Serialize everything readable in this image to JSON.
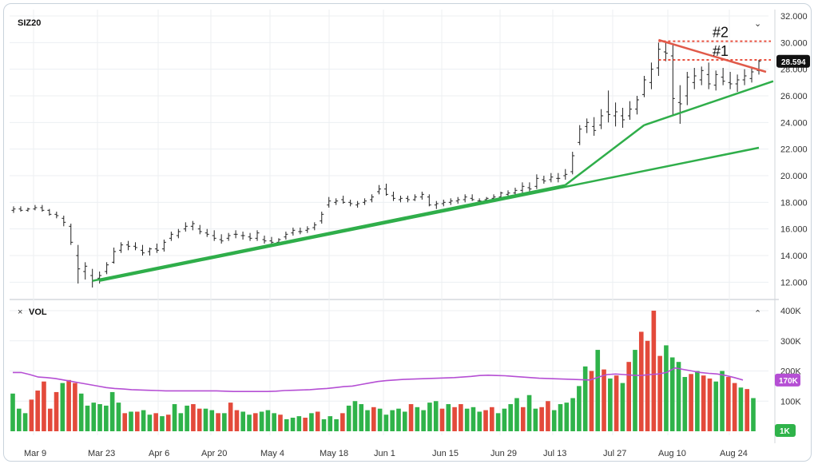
{
  "chart_data": [
    {
      "type": "bar",
      "symbol": "SIZ20",
      "ylim": [
        11,
        32
      ],
      "y_ticks": [
        "12.000",
        "14.000",
        "16.000",
        "18.000",
        "20.000",
        "22.000",
        "24.000",
        "26.000",
        "28.000",
        "30.000",
        "32.000"
      ],
      "y_tick_values": [
        12,
        14,
        16,
        18,
        20,
        22,
        24,
        26,
        28,
        30,
        32
      ],
      "x_ticks": [
        "Mar 9",
        "Mar 23",
        "Apr 6",
        "Apr 20",
        "May 4",
        "May 18",
        "Jun 1",
        "Jun 15",
        "Jun 29",
        "Jul 13",
        "Jul 27",
        "Aug 10",
        "Aug 24"
      ],
      "last_price": "28.594",
      "ohlc": [
        [
          17.4,
          17.7,
          17.2,
          17.5
        ],
        [
          17.5,
          17.7,
          17.3,
          17.4
        ],
        [
          17.4,
          17.6,
          17.3,
          17.5
        ],
        [
          17.5,
          17.8,
          17.4,
          17.6
        ],
        [
          17.6,
          17.8,
          17.3,
          17.4
        ],
        [
          17.4,
          17.5,
          17.0,
          17.1
        ],
        [
          17.1,
          17.3,
          16.8,
          17.0
        ],
        [
          16.8,
          17.0,
          16.2,
          16.5
        ],
        [
          16.2,
          16.4,
          14.8,
          15.0
        ],
        [
          14.0,
          14.8,
          11.9,
          13.0
        ],
        [
          12.8,
          13.5,
          12.2,
          13.2
        ],
        [
          12.5,
          13.0,
          11.6,
          12.1
        ],
        [
          12.3,
          12.8,
          11.9,
          12.5
        ],
        [
          12.8,
          13.5,
          12.6,
          13.3
        ],
        [
          13.5,
          14.6,
          13.4,
          14.3
        ],
        [
          14.4,
          15.0,
          14.2,
          14.8
        ],
        [
          14.8,
          15.1,
          14.4,
          14.7
        ],
        [
          14.7,
          15.0,
          14.4,
          14.6
        ],
        [
          14.4,
          14.8,
          14.0,
          14.2
        ],
        [
          14.3,
          14.6,
          14.0,
          14.5
        ],
        [
          14.5,
          14.9,
          14.2,
          14.4
        ],
        [
          14.5,
          15.2,
          14.3,
          15.0
        ],
        [
          15.3,
          15.8,
          15.1,
          15.6
        ],
        [
          15.5,
          16.0,
          15.3,
          15.8
        ],
        [
          16.0,
          16.5,
          15.8,
          16.2
        ],
        [
          16.2,
          16.6,
          15.9,
          16.4
        ],
        [
          16.0,
          16.3,
          15.6,
          15.8
        ],
        [
          15.7,
          16.0,
          15.4,
          15.6
        ],
        [
          15.5,
          15.9,
          15.1,
          15.3
        ],
        [
          15.2,
          15.6,
          14.9,
          15.1
        ],
        [
          15.3,
          15.7,
          15.1,
          15.5
        ],
        [
          15.6,
          15.9,
          15.3,
          15.6
        ],
        [
          15.5,
          15.8,
          15.2,
          15.5
        ],
        [
          15.4,
          15.7,
          15.1,
          15.3
        ],
        [
          15.3,
          15.9,
          15.1,
          15.7
        ],
        [
          15.2,
          15.5,
          14.9,
          15.1
        ],
        [
          15.1,
          15.4,
          14.8,
          15.0
        ],
        [
          15.0,
          15.3,
          14.9,
          15.2
        ],
        [
          15.4,
          15.8,
          15.2,
          15.6
        ],
        [
          15.7,
          16.1,
          15.5,
          15.9
        ],
        [
          15.8,
          16.1,
          15.6,
          15.8
        ],
        [
          15.9,
          16.2,
          15.7,
          16.0
        ],
        [
          16.1,
          16.5,
          15.9,
          16.3
        ],
        [
          16.6,
          17.3,
          16.4,
          17.1
        ],
        [
          17.8,
          18.4,
          17.6,
          18.1
        ],
        [
          18.0,
          18.3,
          17.8,
          18.1
        ],
        [
          18.2,
          18.5,
          17.9,
          18.0
        ],
        [
          18.0,
          18.2,
          17.7,
          17.9
        ],
        [
          17.8,
          18.1,
          17.6,
          17.9
        ],
        [
          18.0,
          18.3,
          17.8,
          18.1
        ],
        [
          18.2,
          18.6,
          18.0,
          18.4
        ],
        [
          18.8,
          19.3,
          18.6,
          19.0
        ],
        [
          19.0,
          19.4,
          18.5,
          18.6
        ],
        [
          18.5,
          18.8,
          18.1,
          18.3
        ],
        [
          18.2,
          18.5,
          18.0,
          18.3
        ],
        [
          18.3,
          18.5,
          18.0,
          18.2
        ],
        [
          18.2,
          18.6,
          18.1,
          18.4
        ],
        [
          18.4,
          18.8,
          18.2,
          18.6
        ],
        [
          18.4,
          18.6,
          17.7,
          17.8
        ],
        [
          17.8,
          18.1,
          17.5,
          17.9
        ],
        [
          17.9,
          18.2,
          17.7,
          18.0
        ],
        [
          18.0,
          18.3,
          17.8,
          18.1
        ],
        [
          18.1,
          18.4,
          17.9,
          18.2
        ],
        [
          18.2,
          18.6,
          18.0,
          18.4
        ],
        [
          18.3,
          18.6,
          18.1,
          18.2
        ],
        [
          18.1,
          18.3,
          17.9,
          18.1
        ],
        [
          18.2,
          18.4,
          18.0,
          18.3
        ],
        [
          18.3,
          18.6,
          18.1,
          18.4
        ],
        [
          18.4,
          18.8,
          18.2,
          18.7
        ],
        [
          18.6,
          18.9,
          18.4,
          18.7
        ],
        [
          18.7,
          19.1,
          18.5,
          18.9
        ],
        [
          18.9,
          19.5,
          18.7,
          19.2
        ],
        [
          19.1,
          19.5,
          18.8,
          19.0
        ],
        [
          19.2,
          20.1,
          19.0,
          19.8
        ],
        [
          19.7,
          20.0,
          19.4,
          19.6
        ],
        [
          19.7,
          20.2,
          19.5,
          19.9
        ],
        [
          19.8,
          20.2,
          19.5,
          19.8
        ],
        [
          20.0,
          20.5,
          19.7,
          20.1
        ],
        [
          20.3,
          21.8,
          20.1,
          21.5
        ],
        [
          22.5,
          23.8,
          22.3,
          23.5
        ],
        [
          23.7,
          24.3,
          23.2,
          24.0
        ],
        [
          23.7,
          24.4,
          23.0,
          23.4
        ],
        [
          23.8,
          25.0,
          23.5,
          24.5
        ],
        [
          24.8,
          26.4,
          24.0,
          24.6
        ],
        [
          24.5,
          25.5,
          23.7,
          24.8
        ],
        [
          24.5,
          25.1,
          23.6,
          24.2
        ],
        [
          24.5,
          25.6,
          24.2,
          25.0
        ],
        [
          25.0,
          26.0,
          24.6,
          25.7
        ],
        [
          26.1,
          27.5,
          25.9,
          27.2
        ],
        [
          27.0,
          28.5,
          26.5,
          28.0
        ],
        [
          28.1,
          30.0,
          27.5,
          29.5
        ],
        [
          29.3,
          30.1,
          28.6,
          29.2
        ],
        [
          29.0,
          29.9,
          24.5,
          25.8
        ],
        [
          25.5,
          26.8,
          23.9,
          25.4
        ],
        [
          26.0,
          27.8,
          25.3,
          27.4
        ],
        [
          27.0,
          28.1,
          26.5,
          27.5
        ],
        [
          27.2,
          28.2,
          26.8,
          27.9
        ],
        [
          27.6,
          28.5,
          26.5,
          26.9
        ],
        [
          26.8,
          27.9,
          26.4,
          27.6
        ],
        [
          27.4,
          28.1,
          26.8,
          27.1
        ],
        [
          27.0,
          27.8,
          26.5,
          26.9
        ],
        [
          26.9,
          27.6,
          26.3,
          27.2
        ],
        [
          27.2,
          28.0,
          26.8,
          27.5
        ],
        [
          27.3,
          28.1,
          27.0,
          27.8
        ],
        [
          27.9,
          28.7,
          27.6,
          28.594
        ]
      ],
      "trend_lines": [
        {
          "color": "#2fae4a",
          "from": [
            12,
            12.1
          ],
          "to": [
            104,
            22.1
          ]
        },
        {
          "color": "#2fae4a",
          "from": [
            11,
            12.1
          ],
          "to": [
            77,
            19.3
          ]
        },
        {
          "color": "#2fae4a",
          "from": [
            77,
            19.3
          ],
          "to": [
            88,
            23.8
          ]
        },
        {
          "color": "#2fae4a",
          "from": [
            88,
            23.8
          ],
          "to": [
            106,
            27.1
          ]
        },
        {
          "color": "#e05a4a",
          "from": [
            90,
            30.2
          ],
          "to": [
            105,
            27.8
          ]
        }
      ],
      "levels": [
        {
          "label": "#2",
          "value": 30.1,
          "color": "#e8503f"
        },
        {
          "label": "#1",
          "value": 28.7,
          "color": "#e8503f"
        }
      ]
    },
    {
      "type": "bar",
      "title": "VOL",
      "ylim": [
        0,
        420
      ],
      "y_ticks": [
        "100K",
        "200K",
        "300K",
        "400K"
      ],
      "y_tick_values": [
        100,
        200,
        300,
        400
      ],
      "ma_label": "170K",
      "min_label": "1K",
      "volume_k": [
        125,
        75,
        60,
        105,
        135,
        165,
        75,
        130,
        160,
        170,
        160,
        125,
        85,
        95,
        90,
        85,
        130,
        95,
        60,
        65,
        65,
        70,
        55,
        60,
        50,
        55,
        90,
        60,
        85,
        90,
        75,
        75,
        70,
        60,
        60,
        95,
        70,
        65,
        55,
        60,
        65,
        70,
        60,
        55,
        40,
        45,
        50,
        45,
        60,
        65,
        40,
        50,
        40,
        60,
        85,
        100,
        90,
        70,
        80,
        75,
        55,
        70,
        75,
        65,
        90,
        80,
        70,
        95,
        100,
        75,
        90,
        80,
        90,
        75,
        80,
        65,
        70,
        80,
        60,
        75,
        90,
        110,
        80,
        120,
        75,
        80,
        100,
        70,
        90,
        95,
        110,
        150,
        215,
        200,
        270,
        205,
        175,
        185,
        160,
        230,
        270,
        330,
        300,
        400,
        250,
        285,
        245,
        230,
        180,
        190,
        200,
        185,
        175,
        165,
        200,
        180,
        160,
        145,
        140,
        110
      ],
      "volume_up": [
        true,
        true,
        true,
        false,
        false,
        false,
        false,
        false,
        true,
        false,
        false,
        true,
        true,
        true,
        true,
        true,
        true,
        true,
        false,
        true,
        false,
        true,
        true,
        false,
        true,
        false,
        true,
        true,
        true,
        false,
        false,
        true,
        true,
        false,
        true,
        false,
        false,
        true,
        true,
        false,
        true,
        true,
        true,
        false,
        true,
        true,
        true,
        false,
        true,
        false,
        true,
        true,
        true,
        false,
        true,
        true,
        true,
        true,
        false,
        true,
        true,
        true,
        true,
        true,
        false,
        true,
        true,
        true,
        true,
        false,
        true,
        false,
        false,
        true,
        true,
        true,
        false,
        false,
        true,
        true,
        true,
        true,
        false,
        true,
        true,
        false,
        false,
        true,
        true,
        true,
        true,
        true,
        true,
        false,
        true,
        false,
        true,
        false,
        true,
        false,
        true,
        false,
        false,
        false,
        false,
        true,
        true,
        true,
        true,
        false,
        true,
        false,
        false,
        true,
        true,
        false,
        false,
        true,
        false,
        true
      ],
      "ma_k": [
        195,
        195,
        188,
        180,
        178,
        175,
        170,
        165,
        160,
        155,
        150,
        145,
        142,
        140,
        138,
        137,
        136,
        135,
        134,
        134,
        134,
        134,
        134,
        134,
        134,
        133,
        132,
        132,
        132,
        132,
        132,
        133,
        135,
        136,
        137,
        138,
        140,
        142,
        145,
        148,
        150,
        155,
        160,
        165,
        168,
        170,
        172,
        173,
        174,
        175,
        176,
        177,
        178,
        180,
        182,
        185,
        186,
        185,
        184,
        182,
        180,
        178,
        176,
        175,
        174,
        173,
        172,
        171,
        170,
        180,
        188,
        190,
        188,
        186,
        185,
        188,
        190,
        195,
        210,
        205,
        200,
        195,
        192,
        190,
        185,
        178,
        170
      ]
    }
  ]
}
